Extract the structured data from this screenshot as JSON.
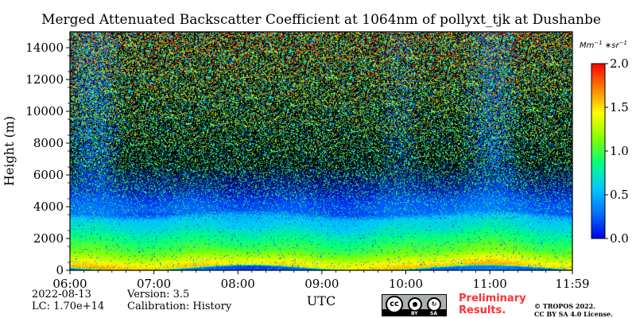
{
  "title": "Merged Attenuated Backscatter Coefficient at 1064nm of pollyxt_tjk at Dushanbe",
  "chart_data": {
    "type": "heatmap",
    "title": "Merged Attenuated Backscatter Coefficient at 1064nm of pollyxt_tjk at Dushanbe",
    "xlabel": "UTC",
    "ylabel": "Height (m)",
    "x_ticks": [
      "06:00",
      "07:00",
      "08:00",
      "09:00",
      "10:00",
      "11:00",
      "11:59"
    ],
    "x_range": [
      "06:00",
      "11:59"
    ],
    "y_ticks": [
      0,
      2000,
      4000,
      6000,
      8000,
      10000,
      12000,
      14000
    ],
    "y_range": [
      0,
      15000
    ],
    "colorbar": {
      "unit": "Mm^-1*sr^-1",
      "ticks": [
        "0.0",
        "0.5",
        "1.0",
        "1.5",
        "2.0"
      ],
      "range": [
        0.0,
        2.0
      ],
      "colormap": [
        "#0000e6",
        "#0070ff",
        "#00c8ff",
        "#00ff80",
        "#80ff00",
        "#ffff00",
        "#ff8000",
        "#ff0000"
      ]
    },
    "profile": [
      {
        "height": 100,
        "value": 0.25
      },
      {
        "height": 200,
        "value": 1.55
      },
      {
        "height": 600,
        "value": 1.35
      },
      {
        "height": 1200,
        "value": 1.05
      },
      {
        "height": 2000,
        "value": 0.85
      },
      {
        "height": 2600,
        "value": 0.68
      },
      {
        "height": 3300,
        "value": 0.55
      },
      {
        "height": 3600,
        "value": 0.2
      },
      {
        "height": 5000,
        "value": 0.05
      }
    ],
    "noise": "increases with height, sparse speckle up to 15000 m",
    "grid": false
  },
  "footer": {
    "date": "2022-08-13",
    "lc": "LC: 1.70e+14",
    "version": "Version: 3.5",
    "calibration": "Calibration: History"
  },
  "license": {
    "badge_icons": [
      "cc-icon",
      "by-icon",
      "sa-icon"
    ],
    "badge_labels": [
      "BY",
      "SA"
    ],
    "preliminary_line1": "Preliminary",
    "preliminary_line2": "Results.",
    "copyright_line1": "© TROPOS 2022.",
    "copyright_line2": "CC BY SA 4.0 License."
  }
}
